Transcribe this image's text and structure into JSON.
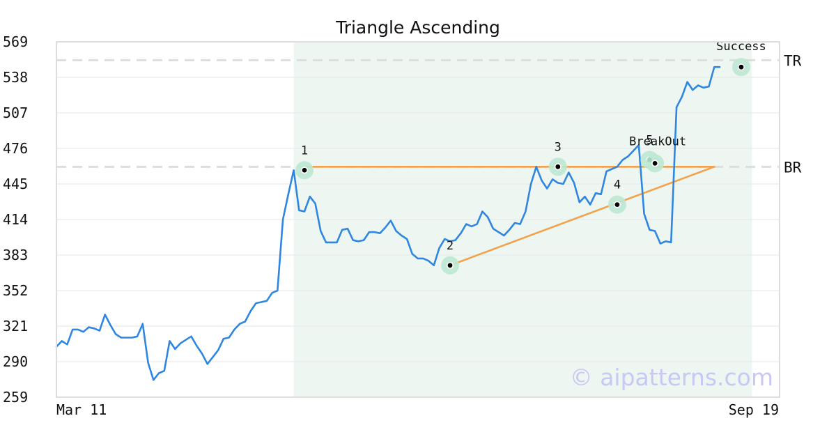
{
  "chart_data": {
    "type": "line",
    "title": "Triangle Ascending",
    "xlabel": "",
    "ylabel": "",
    "ylim": [
      259,
      569
    ],
    "y_ticks": [
      "569",
      "538",
      "507",
      "476",
      "445",
      "414",
      "383",
      "352",
      "321",
      "290",
      "259"
    ],
    "x_tick_labels": [
      "Mar 11",
      "Sep 19"
    ],
    "grid": true,
    "legend": "none",
    "watermark": "© aipatterns.com",
    "colors": {
      "price": "#2f86e0",
      "trendline": "#f2a24a",
      "marker_halo": "#bde8d2",
      "pattern_zone": "#eef6f2",
      "reference": "#dddddd",
      "watermark": "#c8c8f4",
      "frame": "#dddddd"
    },
    "pattern_zone": {
      "start_index": 44,
      "end_index": 129
    },
    "reference_levels": [
      {
        "label": "TR",
        "value": 553
      },
      {
        "label": "BR",
        "value": 460
      }
    ],
    "trendlines": [
      {
        "from": [
          46,
          460
        ],
        "to": [
          122,
          460
        ]
      },
      {
        "from": [
          73,
          374
        ],
        "to": [
          122,
          460
        ]
      }
    ],
    "annotations": [
      {
        "label": "1",
        "index": 46,
        "value": 457
      },
      {
        "label": "2",
        "index": 73,
        "value": 374
      },
      {
        "label": "3",
        "index": 93,
        "value": 460
      },
      {
        "label": "4",
        "index": 104,
        "value": 427
      },
      {
        "label": "5",
        "index": 110,
        "value": 466
      },
      {
        "label": "BreakOut",
        "index": 111,
        "value": 463
      },
      {
        "label": "Success",
        "index": 127,
        "value": 547
      }
    ],
    "series": [
      {
        "values": [
          303,
          308,
          305,
          318,
          318,
          316,
          320,
          319,
          317,
          331,
          322,
          314,
          311,
          311,
          311,
          312,
          323,
          289,
          274,
          280,
          282,
          308,
          301,
          306,
          309,
          312,
          304,
          297,
          288,
          294,
          300,
          310,
          311,
          318,
          323,
          325,
          334,
          341,
          342,
          343,
          350,
          352,
          414,
          436,
          457,
          422,
          421,
          434,
          428,
          404,
          394,
          394,
          394,
          405,
          406,
          396,
          395,
          396,
          403,
          403,
          402,
          407,
          413,
          404,
          400,
          397,
          384,
          380,
          380,
          378,
          374,
          389,
          397,
          395,
          396,
          402,
          410,
          408,
          410,
          421,
          416,
          406,
          403,
          400,
          405,
          411,
          410,
          421,
          445,
          460,
          448,
          441,
          449,
          446,
          445,
          455,
          446,
          429,
          434,
          427,
          437,
          436,
          456,
          458,
          460,
          466,
          469,
          474,
          479,
          419,
          405,
          404,
          393,
          395,
          394,
          512,
          521,
          534,
          527,
          531,
          529,
          530,
          547,
          547
        ]
      }
    ]
  }
}
